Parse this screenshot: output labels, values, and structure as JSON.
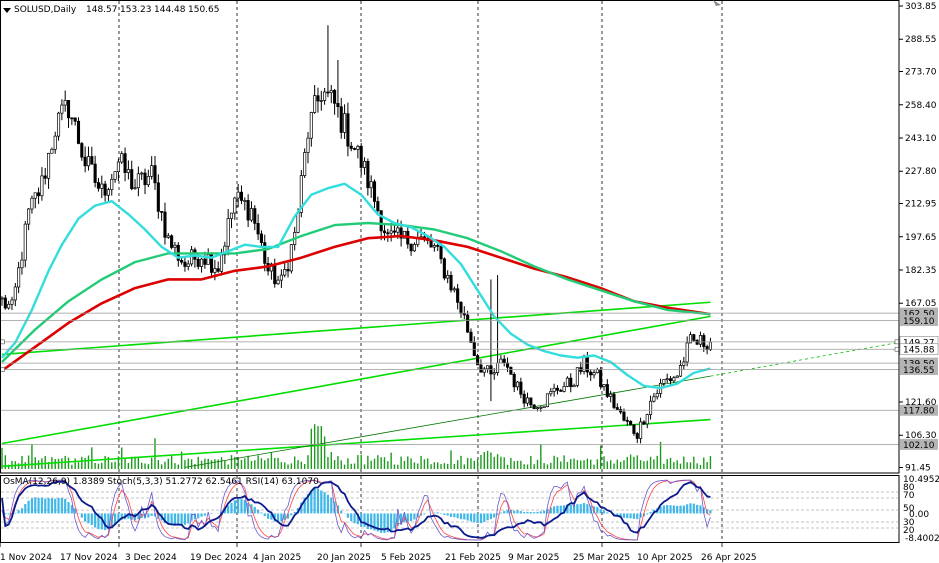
{
  "header": {
    "symbol": "SOLUSD,Daily",
    "ohlc": [
      "148.57",
      "153.23",
      "144.48",
      "150.65"
    ]
  },
  "chart_data": [
    {
      "type": "candlestick",
      "symbol": "SOLUSD",
      "timeframe": "Daily",
      "ylim": [
        91.45,
        303.85
      ],
      "price_ticks": [
        "303.85",
        "288.55",
        "273.70",
        "258.40",
        "243.10",
        "227.80",
        "212.95",
        "197.65",
        "182.35",
        "167.05",
        "121.60",
        "106.30",
        "91.45"
      ],
      "price_markers": [
        {
          "label": "162.50",
          "value": 162.5,
          "line": "#999999",
          "bg": "#b4b4b4"
        },
        {
          "label": "159.10",
          "value": 159.1,
          "line": "#999999",
          "bg": "#b4b4b4"
        },
        {
          "label": "149.27",
          "value": 149.27,
          "line": "#999999",
          "bg": "#ffffff"
        },
        {
          "label": "145.88",
          "value": 145.88,
          "line": "#999999",
          "bg": "#ffffff"
        },
        {
          "label": "139.50",
          "value": 139.5,
          "line": "#999999",
          "bg": "#b4b4b4"
        },
        {
          "label": "136.55",
          "value": 136.55,
          "line": "#999999",
          "bg": "#b4b4b4"
        },
        {
          "label": "117.80",
          "value": 117.8,
          "line": "#999999",
          "bg": "#b4b4b4"
        },
        {
          "label": "102.10",
          "value": 102.1,
          "line": "#999999",
          "bg": "#b4b4b4"
        }
      ],
      "date_labels": [
        "1 Nov 2024",
        "17 Nov 2024",
        "3 Dec 2024",
        "19 Dec 2024",
        "4 Jan 2025",
        "20 Jan 2025",
        "5 Feb 2025",
        "21 Feb 2025",
        "9 Mar 2025",
        "25 Mar 2025",
        "10 Apr 2025",
        "26 Apr 2025"
      ],
      "anchors": [
        [
          0,
          168
        ],
        [
          3,
          164
        ],
        [
          8,
          208
        ],
        [
          12,
          222
        ],
        [
          16,
          248
        ],
        [
          20,
          258
        ],
        [
          25,
          232
        ],
        [
          30,
          218
        ],
        [
          35,
          232
        ],
        [
          40,
          221
        ],
        [
          45,
          226
        ],
        [
          50,
          196
        ],
        [
          55,
          185
        ],
        [
          60,
          190
        ],
        [
          65,
          184
        ],
        [
          70,
          215
        ],
        [
          75,
          210
        ],
        [
          80,
          182
        ],
        [
          84,
          176
        ],
        [
          88,
          198
        ],
        [
          92,
          246
        ],
        [
          96,
          265
        ],
        [
          100,
          258
        ],
        [
          104,
          245
        ],
        [
          108,
          232
        ],
        [
          112,
          215
        ],
        [
          116,
          197
        ],
        [
          120,
          196
        ],
        [
          125,
          197
        ],
        [
          130,
          192
        ],
        [
          135,
          176
        ],
        [
          139,
          160
        ],
        [
          143,
          140
        ],
        [
          147,
          133
        ],
        [
          151,
          141
        ],
        [
          155,
          128
        ],
        [
          159,
          121
        ],
        [
          163,
          122
        ],
        [
          167,
          128
        ],
        [
          171,
          130
        ],
        [
          175,
          139
        ],
        [
          179,
          133
        ],
        [
          183,
          123
        ],
        [
          187,
          113
        ],
        [
          191,
          107
        ],
        [
          195,
          122
        ],
        [
          199,
          131
        ],
        [
          203,
          134
        ],
        [
          207,
          149
        ],
        [
          211,
          149
        ],
        [
          213,
          150
        ]
      ],
      "spikes": [
        [
          147,
          178
        ],
        [
          149,
          180
        ],
        [
          147,
          122
        ],
        [
          98,
          295
        ],
        [
          101,
          279
        ]
      ],
      "ma_fast": [
        [
          0,
          142
        ],
        [
          4,
          149
        ],
        [
          9,
          164
        ],
        [
          14,
          182
        ],
        [
          18,
          194
        ],
        [
          23,
          206
        ],
        [
          28,
          212
        ],
        [
          33,
          214
        ],
        [
          38,
          208
        ],
        [
          43,
          201
        ],
        [
          48,
          193
        ],
        [
          53,
          188
        ],
        [
          58,
          189
        ],
        [
          63,
          188
        ],
        [
          68,
          191
        ],
        [
          73,
          194
        ],
        [
          78,
          193
        ],
        [
          83,
          193
        ],
        [
          88,
          207
        ],
        [
          93,
          217
        ],
        [
          98,
          220
        ],
        [
          103,
          222
        ],
        [
          108,
          217
        ],
        [
          113,
          208
        ],
        [
          118,
          204
        ],
        [
          123,
          202
        ],
        [
          128,
          198
        ],
        [
          133,
          193
        ],
        [
          138,
          185
        ],
        [
          143,
          173
        ],
        [
          148,
          161
        ],
        [
          153,
          153
        ],
        [
          158,
          148
        ],
        [
          163,
          145
        ],
        [
          168,
          143
        ],
        [
          173,
          142
        ],
        [
          178,
          143
        ],
        [
          183,
          140
        ],
        [
          188,
          134
        ],
        [
          193,
          129
        ],
        [
          198,
          128
        ],
        [
          203,
          130
        ],
        [
          208,
          135
        ],
        [
          213,
          137
        ]
      ],
      "ma_mid": [
        [
          0,
          140
        ],
        [
          10,
          155
        ],
        [
          20,
          168
        ],
        [
          30,
          178
        ],
        [
          40,
          186
        ],
        [
          50,
          190
        ],
        [
          60,
          190
        ],
        [
          70,
          190
        ],
        [
          80,
          192
        ],
        [
          90,
          198
        ],
        [
          100,
          203
        ],
        [
          110,
          204
        ],
        [
          120,
          203
        ],
        [
          130,
          201
        ],
        [
          140,
          197
        ],
        [
          150,
          191
        ],
        [
          160,
          184
        ],
        [
          170,
          178
        ],
        [
          180,
          173
        ],
        [
          190,
          168
        ],
        [
          200,
          164
        ],
        [
          213,
          162
        ]
      ],
      "ma_slow": [
        [
          0,
          136
        ],
        [
          10,
          147
        ],
        [
          20,
          158
        ],
        [
          30,
          167
        ],
        [
          40,
          174
        ],
        [
          50,
          178
        ],
        [
          60,
          178
        ],
        [
          70,
          182
        ],
        [
          80,
          184
        ],
        [
          90,
          188
        ],
        [
          100,
          193
        ],
        [
          110,
          197
        ],
        [
          120,
          198
        ],
        [
          130,
          196
        ],
        [
          140,
          193
        ],
        [
          150,
          188
        ],
        [
          160,
          183
        ],
        [
          170,
          179
        ],
        [
          180,
          174
        ],
        [
          190,
          168
        ],
        [
          200,
          165
        ],
        [
          213,
          162
        ]
      ],
      "trend_lines": [
        {
          "from": [
            0,
            102.5
          ],
          "to": [
            213,
            161.0
          ],
          "color": "#00dd00",
          "width": 1.6
        },
        {
          "from": [
            0,
            92.0
          ],
          "to": [
            213,
            113.5
          ],
          "color": "#00dd00",
          "width": 1.6
        },
        {
          "from": [
            0,
            143.5
          ],
          "to": [
            213,
            167.5
          ],
          "color": "#00dd00",
          "width": 1.6
        },
        {
          "from": [
            55,
            91.5
          ],
          "to": [
            213,
            133.5
          ],
          "color": "#007700",
          "width": 0.8
        },
        {
          "from": [
            213,
            133.5
          ],
          "to": [
            275,
            150.5
          ],
          "color": "#00bb00",
          "width": 0.8,
          "dashed": true
        }
      ],
      "volume_series": "green histogram of daily volumes in the main pane"
    },
    {
      "type": "indicators",
      "legend": "OsMA(12,26,9) 1.8389  Stoch(5,3,3) 51.2772 62.5461  RSI(14) 63.1070",
      "ylim": [
        -8.4002,
        10.4952
      ],
      "ticks": [
        "10.4952",
        "80",
        "70",
        "50",
        "0.00",
        "30",
        "20",
        "-8.4002"
      ],
      "level_lines": [
        80,
        70,
        50,
        30,
        20
      ]
    }
  ]
}
